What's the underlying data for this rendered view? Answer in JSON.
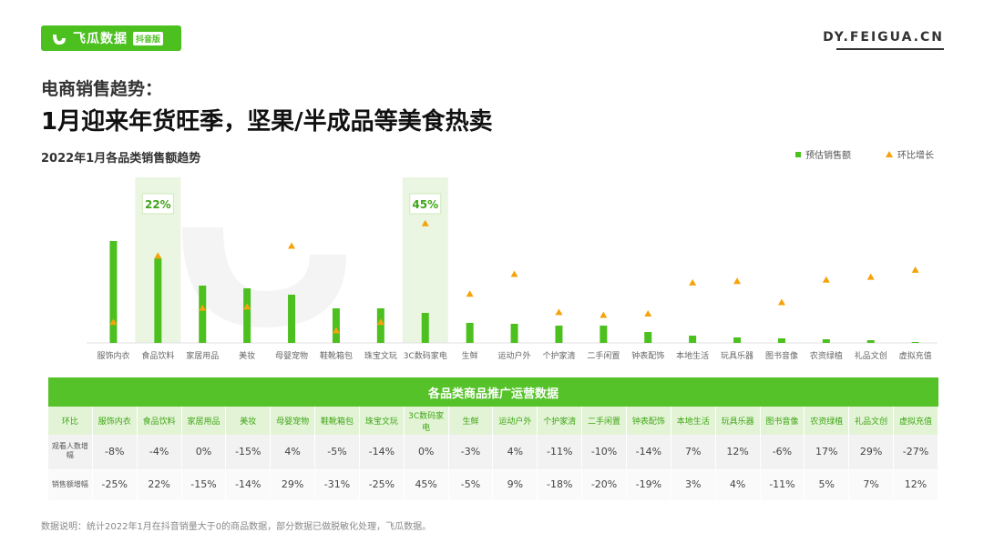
{
  "brand": {
    "name": "飞瓜数据",
    "tag": "抖音版",
    "site": "DY.FEIGUA.CN"
  },
  "heading": {
    "kicker": "电商销售趋势：",
    "headline": "1月迎来年货旺季，坚果/半成品等美食热卖"
  },
  "chart_data": {
    "type": "bar",
    "title": "2022年1月各品类销售额趋势",
    "categories": [
      "服饰内衣",
      "食品饮料",
      "家居用品",
      "美妆",
      "母婴宠物",
      "鞋靴箱包",
      "珠宝文玩",
      "3C数码家电",
      "生鲜",
      "运动户外",
      "个护家清",
      "二手闲置",
      "钟表配饰",
      "本地生活",
      "玩具乐器",
      "图书音像",
      "农资绿植",
      "礼品文创",
      "虚拟充值"
    ],
    "series": [
      {
        "name": "预估销售额",
        "kind": "bar",
        "values": [
          112,
          93,
          63,
          60,
          53,
          38,
          38,
          33,
          22,
          21,
          19,
          19,
          12,
          8,
          6,
          5,
          4,
          3,
          1
        ]
      },
      {
        "name": "环比增长",
        "kind": "marker",
        "values": [
          -25,
          22,
          -15,
          -14,
          29,
          -31,
          -25,
          45,
          -5,
          9,
          -18,
          -20,
          -19,
          3,
          4,
          -11,
          5,
          7,
          12
        ]
      }
    ],
    "highlights": [
      {
        "category": "食品饮料",
        "label": "22%"
      },
      {
        "category": "3C数码家电",
        "label": "45%"
      }
    ],
    "colors": {
      "bar": "#4cc01e",
      "marker": "#f5a30a",
      "highlight": "#eaf6e1"
    }
  },
  "table": {
    "title": "各品类商品推广运营数据",
    "corner": "环比",
    "categories": [
      "服饰内衣",
      "食品饮料",
      "家居用品",
      "美妆",
      "母婴宠物",
      "鞋靴箱包",
      "珠宝文玩",
      "3C数码家电",
      "生鲜",
      "运动户外",
      "个护家清",
      "二手闲置",
      "钟表配饰",
      "本地生活",
      "玩具乐器",
      "图书音像",
      "农资绿植",
      "礼品文创",
      "虚拟充值"
    ],
    "rows": [
      {
        "label": "观看人数增幅",
        "values": [
          "-8%",
          "-4%",
          "0%",
          "-15%",
          "4%",
          "-5%",
          "-14%",
          "0%",
          "-3%",
          "4%",
          "-11%",
          "-10%",
          "-14%",
          "7%",
          "12%",
          "-6%",
          "17%",
          "29%",
          "-27%"
        ]
      },
      {
        "label": "销售额增幅",
        "values": [
          "-25%",
          "22%",
          "-15%",
          "-14%",
          "29%",
          "-31%",
          "-25%",
          "45%",
          "-5%",
          "9%",
          "-18%",
          "-20%",
          "-19%",
          "3%",
          "4%",
          "-11%",
          "5%",
          "7%",
          "12%"
        ]
      }
    ]
  },
  "note": "数据说明：统计2022年1月在抖音销量大于0的商品数据，部分数据已做脱敏化处理，飞瓜数据。"
}
